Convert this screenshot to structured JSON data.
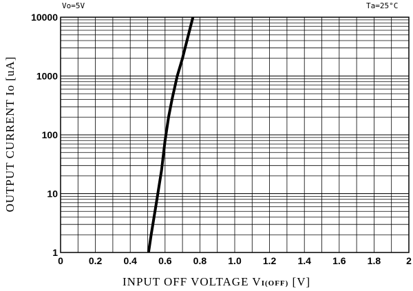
{
  "conditions": {
    "left": "Vo=5V",
    "right": "Ta=25°C"
  },
  "axis_labels": {
    "y": "OUTPUT CURRENT Io [uA]",
    "x_main": "INPUT OFF VOLTAGE V",
    "x_sub": "I(OFF)",
    "x_unit": " [V]"
  },
  "chart_data": {
    "type": "line",
    "title": "",
    "xlabel": "INPUT OFF VOLTAGE VI(OFF) [V]",
    "ylabel": "OUTPUT CURRENT Io [uA]",
    "xlim": [
      0,
      2
    ],
    "ylim": [
      1,
      10000
    ],
    "yscale": "log",
    "grid": true,
    "x_ticks": [
      "0",
      "0.2",
      "0.4",
      "0.6",
      "0.8",
      "1.0",
      "1.2",
      "1.4",
      "1.6",
      "1.8",
      "2"
    ],
    "y_ticks": [
      "1",
      "10",
      "100",
      "1000",
      "10000"
    ],
    "series": [
      {
        "name": "",
        "x": [
          0.505,
          0.52,
          0.55,
          0.58,
          0.6,
          0.62,
          0.64,
          0.67,
          0.7,
          0.73,
          0.76
        ],
        "y": [
          1,
          2,
          7,
          25,
          80,
          200,
          400,
          1000,
          2000,
          4500,
          10000
        ]
      }
    ]
  }
}
